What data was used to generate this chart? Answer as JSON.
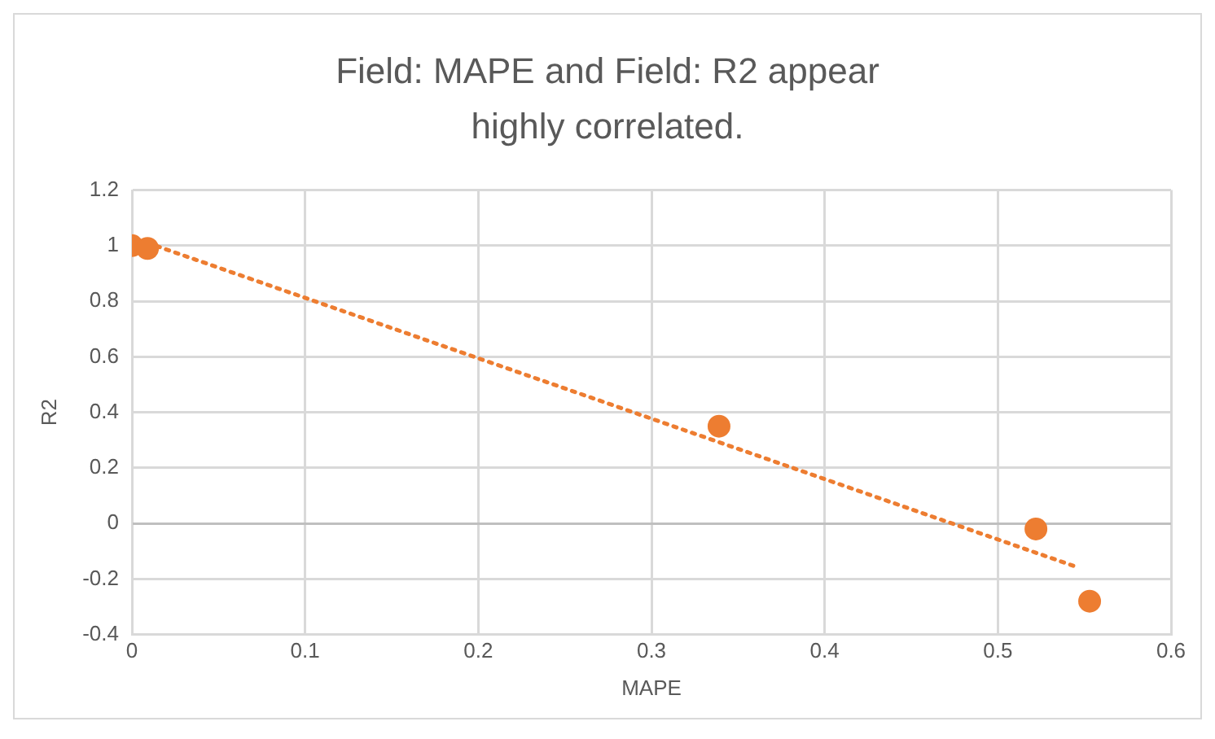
{
  "chart_data": {
    "type": "scatter",
    "title": "Field: MAPE and Field: R2 appear highly correlated.",
    "xlabel": "MAPE",
    "ylabel": "R2",
    "xlim": [
      0,
      0.6
    ],
    "xticks": [
      0,
      0.1,
      0.2,
      0.3,
      0.4,
      0.5,
      0.6
    ],
    "ylim": [
      -0.4,
      1.2
    ],
    "yticks": [
      -0.4,
      -0.2,
      0,
      0.2,
      0.4,
      0.6,
      0.8,
      1,
      1.2
    ],
    "grid": true,
    "legend": false,
    "marker": "circle",
    "series": [
      {
        "color": "#ed7d31",
        "x": [
          0,
          0.009,
          0.339,
          0.522,
          0.553
        ],
        "values": [
          1,
          0.99,
          0.35,
          -0.02,
          -0.28
        ]
      },
      {
        "type": "line",
        "color": "#ed7d31",
        "line_style": "dotted",
        "marker": "none",
        "x": [
          0.009,
          0.547
        ],
        "values": [
          1.01,
          -0.16
        ]
      }
    ]
  }
}
